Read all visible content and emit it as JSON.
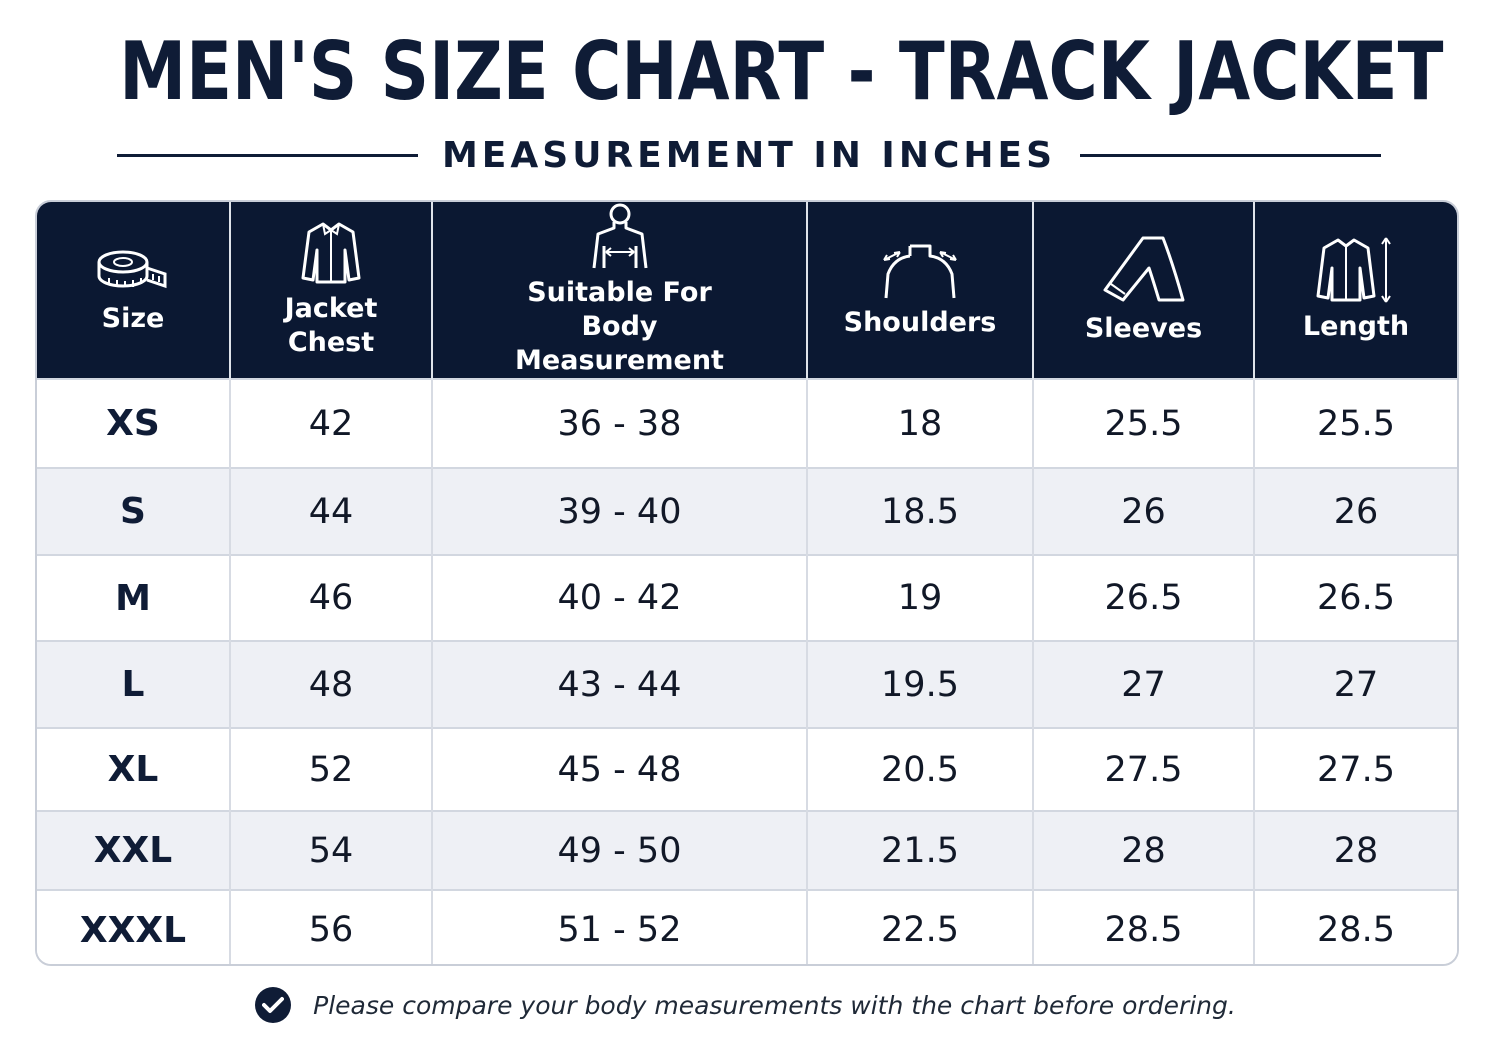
{
  "header": {
    "title": "MEN'S SIZE CHART - TRACK JACKET",
    "subtitle": "MEASUREMENT IN INCHES"
  },
  "chart_data": {
    "type": "table",
    "columns": [
      {
        "label": "Size",
        "icon": "measuring-tape-icon"
      },
      {
        "label": "Jacket Chest",
        "icon": "jacket-icon"
      },
      {
        "label": "Suitable For Body Measurement",
        "icon": "body-chest-icon"
      },
      {
        "label": "Shoulders",
        "icon": "shoulders-icon"
      },
      {
        "label": "Sleeves",
        "icon": "sleeve-icon"
      },
      {
        "label": "Length",
        "icon": "jacket-length-icon"
      }
    ],
    "rows": [
      [
        "XS",
        "42",
        "36 - 38",
        "18",
        "25.5",
        "25.5"
      ],
      [
        "S",
        "44",
        "39 - 40",
        "18.5",
        "26",
        "26"
      ],
      [
        "M",
        "46",
        "40 - 42",
        "19",
        "26.5",
        "26.5"
      ],
      [
        "L",
        "48",
        "43 - 44",
        "19.5",
        "27",
        "27"
      ],
      [
        "XL",
        "52",
        "45 - 48",
        "20.5",
        "27.5",
        "27.5"
      ],
      [
        "XXL",
        "54",
        "49 - 50",
        "21.5",
        "28",
        "28"
      ],
      [
        "XXXL",
        "56",
        "51 - 52",
        "22.5",
        "28.5",
        "28.5"
      ]
    ]
  },
  "footer": {
    "note": "Please compare your body measurements with the chart before ordering.",
    "icon": "checkmark-circle-icon"
  },
  "colors": {
    "navy": "#0b1832",
    "row_alt": "#eef0f5",
    "border": "#d2d7e0"
  }
}
